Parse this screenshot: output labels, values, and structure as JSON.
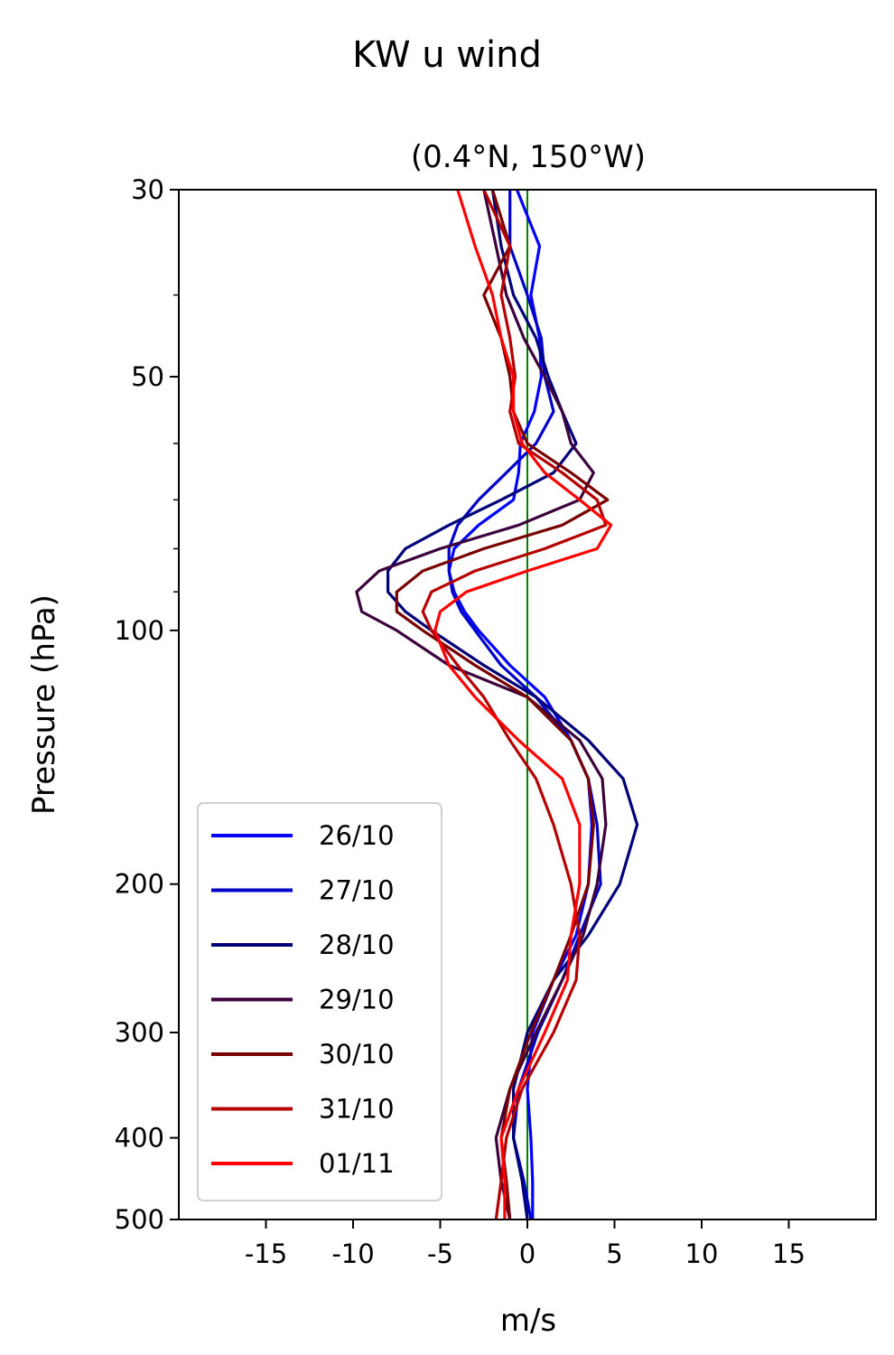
{
  "chart_data": {
    "type": "line",
    "title": "KW u wind",
    "subtitle": "(0.4°N, 150°W)",
    "xlabel": "m/s",
    "ylabel": "Pressure (hPa)",
    "xlim": [
      -20,
      20
    ],
    "ylim": [
      500,
      30
    ],
    "yscale": "log",
    "xticks": [
      -15,
      -10,
      -5,
      0,
      5,
      10,
      15
    ],
    "xtick_labels": [
      "-15",
      "-10",
      "-5",
      "0",
      "5",
      "10",
      "15"
    ],
    "yticks": [
      30,
      50,
      100,
      200,
      300,
      400,
      500
    ],
    "ytick_labels": [
      "30",
      "50",
      "100",
      "200",
      "300",
      "400",
      "500"
    ],
    "y_minor_ticks": [
      40,
      60,
      70,
      80,
      90
    ],
    "zero_line_color": "#008000",
    "legend_position": "lower-left",
    "pressure_levels": [
      30,
      35,
      40,
      45,
      50,
      55,
      60,
      65,
      70,
      75,
      80,
      85,
      90,
      95,
      100,
      110,
      120,
      135,
      150,
      170,
      200,
      230,
      260,
      300,
      350,
      400,
      450,
      500
    ],
    "series": [
      {
        "name": "26/10",
        "color": "#0000ff",
        "values": [
          -0.6,
          0.7,
          0.2,
          0.7,
          0.8,
          0.4,
          -0.4,
          -0.5,
          -0.8,
          -2.8,
          -4.2,
          -4.5,
          -4.2,
          -3.6,
          -2.8,
          -1.0,
          1.0,
          2.5,
          3.5,
          3.7,
          3.5,
          2.8,
          1.5,
          0.3,
          0.0,
          0.2,
          0.3,
          0.3
        ]
      },
      {
        "name": "27/10",
        "color": "#0000c8",
        "values": [
          -1.0,
          -1.0,
          0.0,
          0.8,
          1.0,
          1.5,
          0.5,
          -1.2,
          -2.8,
          -4.0,
          -4.5,
          -4.5,
          -4.3,
          -3.8,
          -3.0,
          -1.5,
          0.5,
          2.5,
          3.5,
          4.0,
          4.2,
          3.0,
          2.0,
          0.6,
          -0.5,
          -0.8,
          -0.2,
          0.2
        ]
      },
      {
        "name": "28/10",
        "color": "#000078",
        "values": [
          -2.0,
          -1.5,
          -0.8,
          0.5,
          1.2,
          2.0,
          2.8,
          1.5,
          -1.5,
          -4.5,
          -7.0,
          -8.0,
          -8.0,
          -7.0,
          -5.5,
          -2.5,
          0.5,
          3.5,
          5.5,
          6.3,
          5.3,
          3.5,
          1.5,
          0.0,
          -0.8,
          -0.8,
          -0.3,
          0.0
        ]
      },
      {
        "name": "29/10",
        "color": "#3c003c",
        "values": [
          -2.5,
          -1.8,
          -1.2,
          -0.2,
          1.0,
          2.0,
          2.5,
          3.8,
          3.0,
          -0.5,
          -5.0,
          -8.5,
          -9.8,
          -9.5,
          -7.5,
          -4.5,
          0.0,
          3.0,
          4.3,
          4.5,
          4.0,
          3.2,
          2.0,
          0.5,
          -1.0,
          -1.8,
          -1.5,
          -1.0
        ]
      },
      {
        "name": "30/10",
        "color": "#780000",
        "values": [
          -2.0,
          -1.0,
          -2.5,
          -1.5,
          -1.0,
          -0.8,
          0.0,
          2.5,
          4.6,
          2.0,
          -2.5,
          -6.0,
          -7.5,
          -7.5,
          -6.0,
          -3.0,
          0.0,
          2.5,
          3.5,
          3.8,
          3.5,
          2.5,
          1.5,
          0.2,
          -1.0,
          -1.5,
          -1.2,
          -1.0
        ]
      },
      {
        "name": "31/10",
        "color": "#b40000",
        "values": [
          -2.5,
          -1.0,
          -1.5,
          -1.0,
          -0.7,
          -1.0,
          -0.5,
          2.0,
          4.0,
          4.5,
          1.0,
          -3.0,
          -5.5,
          -6.0,
          -5.5,
          -4.0,
          -2.5,
          -1.0,
          0.5,
          1.5,
          2.5,
          3.0,
          2.8,
          1.5,
          -0.3,
          -1.2,
          -1.5,
          -1.8
        ]
      },
      {
        "name": "01/11",
        "color": "#ff0000",
        "values": [
          -4.0,
          -3.0,
          -2.0,
          -1.5,
          -0.8,
          -0.8,
          -0.3,
          1.0,
          3.0,
          4.8,
          4.0,
          0.0,
          -3.5,
          -5.0,
          -5.3,
          -4.5,
          -3.0,
          -0.5,
          2.0,
          3.0,
          3.0,
          2.5,
          2.3,
          1.0,
          -0.5,
          -1.5,
          -1.3,
          -1.3
        ]
      }
    ]
  }
}
